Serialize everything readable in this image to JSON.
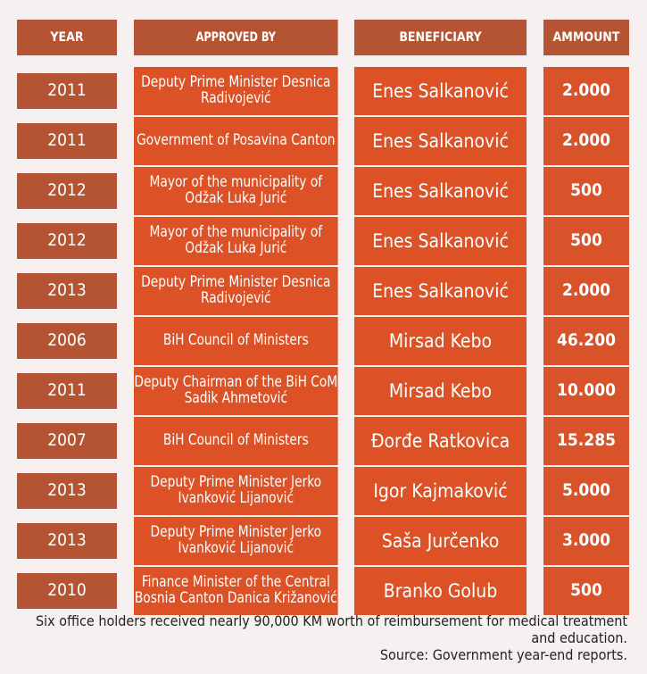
{
  "headers": {
    "year": "YEAR",
    "approved_by": "APPROVED BY",
    "beneficiary": "BENEFICIARY",
    "amount": "AMMOUNT"
  },
  "rows": [
    {
      "year": "2011",
      "approved_by": "Deputy Prime Minister Desnica Radivojević",
      "beneficiary": "Enes Salkanović",
      "amount": "2.000"
    },
    {
      "year": "2011",
      "approved_by": "Government of Posavina Canton",
      "beneficiary": "Enes Salkanović",
      "amount": "2.000"
    },
    {
      "year": "2012",
      "approved_by": "Mayor of the municipality of Odžak Luka Jurić",
      "beneficiary": "Enes Salkanović",
      "amount": "500"
    },
    {
      "year": "2012",
      "approved_by": "Mayor of the municipality of Odžak Luka Jurić",
      "beneficiary": "Enes Salkanović",
      "amount": "500"
    },
    {
      "year": "2013",
      "approved_by": "Deputy Prime Minister Desnica Radivojević",
      "beneficiary": "Enes Salkanović",
      "amount": "2.000"
    },
    {
      "year": "2006",
      "approved_by": "BiH Council of Ministers",
      "beneficiary": "Mirsad Kebo",
      "amount": "46.200"
    },
    {
      "year": "2011",
      "approved_by": "Deputy Chairman of the BiH CoM Sadik Ahmetović",
      "beneficiary": "Mirsad Kebo",
      "amount": "10.000"
    },
    {
      "year": "2007",
      "approved_by": "BiH Council of Ministers",
      "beneficiary": "Đorđe Ratkovica",
      "amount": "15.285"
    },
    {
      "year": "2013",
      "approved_by": "Deputy Prime Minister Jerko Ivanković Lijanović",
      "beneficiary": "Igor Kajmaković",
      "amount": "5.000"
    },
    {
      "year": "2013",
      "approved_by": "Deputy Prime Minister Jerko Ivanković Lijanović",
      "beneficiary": "Saša Jurčenko",
      "amount": "3.000"
    },
    {
      "year": "2010",
      "approved_by": "Finance Minister of the Central Bosnia Canton Danica Križanović",
      "beneficiary": "Branko Golub",
      "amount": "500"
    }
  ],
  "footer": {
    "note": "Six office holders received nearly 90,000 KM worth of reimbursement for medical treatment and education.",
    "source": "Source:  Government year-end reports."
  }
}
